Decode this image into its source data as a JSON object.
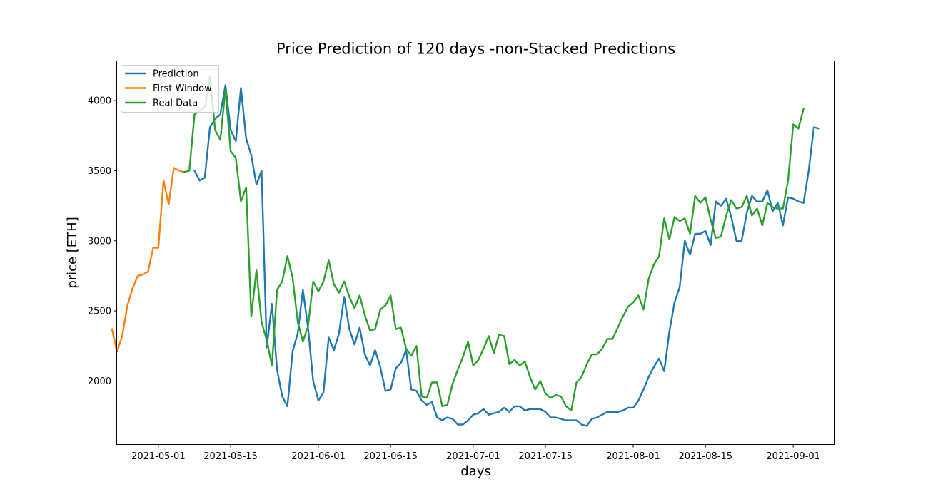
{
  "chart_data": {
    "type": "line",
    "title": "Price Prediction of 120 days -non-Stacked Predictions",
    "xlabel": "days",
    "ylabel": "price [ETH]",
    "xlim": [
      "2021-04-23",
      "2021-09-09"
    ],
    "ylim": [
      1550,
      4280
    ],
    "x_ticks": [
      "2021-05-01",
      "2021-05-15",
      "2021-06-01",
      "2021-06-15",
      "2021-07-01",
      "2021-07-15",
      "2021-08-01",
      "2021-08-15",
      "2021-09-01"
    ],
    "y_ticks": [
      2000,
      2500,
      3000,
      3500,
      4000
    ],
    "grid": false,
    "legend_position": "top-left",
    "series": [
      {
        "name": "Prediction",
        "color": "#1f77b4",
        "points": [
          [
            "2021-05-08",
            3500
          ],
          [
            "2021-05-09",
            3430
          ],
          [
            "2021-05-10",
            3450
          ],
          [
            "2021-05-11",
            3810
          ],
          [
            "2021-05-12",
            3870
          ],
          [
            "2021-05-13",
            3900
          ],
          [
            "2021-05-14",
            4110
          ],
          [
            "2021-05-15",
            3790
          ],
          [
            "2021-05-16",
            3710
          ],
          [
            "2021-05-17",
            4090
          ],
          [
            "2021-05-18",
            3730
          ],
          [
            "2021-05-19",
            3610
          ],
          [
            "2021-05-20",
            3400
          ],
          [
            "2021-05-21",
            3500
          ],
          [
            "2021-05-22",
            2240
          ],
          [
            "2021-05-23",
            2550
          ],
          [
            "2021-05-24",
            2080
          ],
          [
            "2021-05-25",
            1890
          ],
          [
            "2021-05-26",
            1820
          ],
          [
            "2021-05-27",
            2210
          ],
          [
            "2021-05-28",
            2340
          ],
          [
            "2021-05-29",
            2650
          ],
          [
            "2021-05-30",
            2380
          ],
          [
            "2021-05-31",
            2000
          ],
          [
            "2021-06-01",
            1860
          ],
          [
            "2021-06-02",
            1920
          ],
          [
            "2021-06-03",
            2310
          ],
          [
            "2021-06-04",
            2220
          ],
          [
            "2021-06-05",
            2340
          ],
          [
            "2021-06-06",
            2600
          ],
          [
            "2021-06-07",
            2370
          ],
          [
            "2021-06-08",
            2260
          ],
          [
            "2021-06-09",
            2380
          ],
          [
            "2021-06-10",
            2190
          ],
          [
            "2021-06-11",
            2110
          ],
          [
            "2021-06-12",
            2220
          ],
          [
            "2021-06-13",
            2100
          ],
          [
            "2021-06-14",
            1930
          ],
          [
            "2021-06-15",
            1940
          ],
          [
            "2021-06-16",
            2090
          ],
          [
            "2021-06-17",
            2130
          ],
          [
            "2021-06-18",
            2220
          ],
          [
            "2021-06-19",
            1940
          ],
          [
            "2021-06-20",
            1930
          ],
          [
            "2021-06-21",
            1860
          ],
          [
            "2021-06-22",
            1830
          ],
          [
            "2021-06-23",
            1850
          ],
          [
            "2021-06-24",
            1740
          ],
          [
            "2021-06-25",
            1720
          ],
          [
            "2021-06-26",
            1740
          ],
          [
            "2021-06-27",
            1730
          ],
          [
            "2021-06-28",
            1690
          ],
          [
            "2021-06-29",
            1690
          ],
          [
            "2021-06-30",
            1720
          ],
          [
            "2021-07-01",
            1760
          ],
          [
            "2021-07-02",
            1770
          ],
          [
            "2021-07-03",
            1800
          ],
          [
            "2021-07-04",
            1760
          ],
          [
            "2021-07-05",
            1770
          ],
          [
            "2021-07-06",
            1780
          ],
          [
            "2021-07-07",
            1810
          ],
          [
            "2021-07-08",
            1780
          ],
          [
            "2021-07-09",
            1820
          ],
          [
            "2021-07-10",
            1820
          ],
          [
            "2021-07-11",
            1790
          ],
          [
            "2021-07-12",
            1800
          ],
          [
            "2021-07-13",
            1800
          ],
          [
            "2021-07-14",
            1800
          ],
          [
            "2021-07-15",
            1780
          ],
          [
            "2021-07-16",
            1740
          ],
          [
            "2021-07-17",
            1740
          ],
          [
            "2021-07-18",
            1730
          ],
          [
            "2021-07-19",
            1720
          ],
          [
            "2021-07-20",
            1720
          ],
          [
            "2021-07-21",
            1720
          ],
          [
            "2021-07-22",
            1690
          ],
          [
            "2021-07-23",
            1680
          ],
          [
            "2021-07-24",
            1730
          ],
          [
            "2021-07-25",
            1740
          ],
          [
            "2021-07-26",
            1760
          ],
          [
            "2021-07-27",
            1780
          ],
          [
            "2021-07-28",
            1780
          ],
          [
            "2021-07-29",
            1780
          ],
          [
            "2021-07-30",
            1790
          ],
          [
            "2021-07-31",
            1810
          ],
          [
            "2021-08-01",
            1810
          ],
          [
            "2021-08-02",
            1860
          ],
          [
            "2021-08-03",
            1940
          ],
          [
            "2021-08-04",
            2030
          ],
          [
            "2021-08-05",
            2100
          ],
          [
            "2021-08-06",
            2160
          ],
          [
            "2021-08-07",
            2070
          ],
          [
            "2021-08-08",
            2350
          ],
          [
            "2021-08-09",
            2560
          ],
          [
            "2021-08-10",
            2670
          ],
          [
            "2021-08-11",
            3000
          ],
          [
            "2021-08-12",
            2900
          ],
          [
            "2021-08-13",
            3050
          ],
          [
            "2021-08-14",
            3050
          ],
          [
            "2021-08-15",
            3070
          ],
          [
            "2021-08-16",
            2970
          ],
          [
            "2021-08-17",
            3280
          ],
          [
            "2021-08-18",
            3250
          ],
          [
            "2021-08-19",
            3300
          ],
          [
            "2021-08-20",
            3170
          ],
          [
            "2021-08-21",
            3000
          ],
          [
            "2021-08-22",
            3000
          ],
          [
            "2021-08-23",
            3200
          ],
          [
            "2021-08-24",
            3320
          ],
          [
            "2021-08-25",
            3280
          ],
          [
            "2021-08-26",
            3280
          ],
          [
            "2021-08-27",
            3360
          ],
          [
            "2021-08-28",
            3210
          ],
          [
            "2021-08-29",
            3270
          ],
          [
            "2021-08-30",
            3110
          ],
          [
            "2021-08-31",
            3310
          ],
          [
            "2021-09-01",
            3300
          ],
          [
            "2021-09-02",
            3280
          ],
          [
            "2021-09-03",
            3270
          ],
          [
            "2021-09-04",
            3500
          ],
          [
            "2021-09-05",
            3810
          ],
          [
            "2021-09-06",
            3800
          ]
        ]
      },
      {
        "name": "First Window",
        "color": "#ff7f0e",
        "points": [
          [
            "2021-04-22",
            2370
          ],
          [
            "2021-04-23",
            2210
          ],
          [
            "2021-04-24",
            2320
          ],
          [
            "2021-04-25",
            2540
          ],
          [
            "2021-04-26",
            2660
          ],
          [
            "2021-04-27",
            2750
          ],
          [
            "2021-04-28",
            2760
          ],
          [
            "2021-04-29",
            2780
          ],
          [
            "2021-04-30",
            2950
          ],
          [
            "2021-05-01",
            2950
          ],
          [
            "2021-05-02",
            3430
          ],
          [
            "2021-05-03",
            3260
          ],
          [
            "2021-05-04",
            3520
          ],
          [
            "2021-05-05",
            3500
          ],
          [
            "2021-05-06",
            3490
          ]
        ]
      },
      {
        "name": "Real Data",
        "color": "#2ca02c",
        "points": [
          [
            "2021-05-06",
            3490
          ],
          [
            "2021-05-07",
            3500
          ],
          [
            "2021-05-08",
            3900
          ],
          [
            "2021-05-09",
            3930
          ],
          [
            "2021-05-10",
            3950
          ],
          [
            "2021-05-11",
            4170
          ],
          [
            "2021-05-12",
            3790
          ],
          [
            "2021-05-13",
            3720
          ],
          [
            "2021-05-14",
            4080
          ],
          [
            "2021-05-15",
            3640
          ],
          [
            "2021-05-16",
            3590
          ],
          [
            "2021-05-17",
            3280
          ],
          [
            "2021-05-18",
            3380
          ],
          [
            "2021-05-19",
            2460
          ],
          [
            "2021-05-20",
            2790
          ],
          [
            "2021-05-21",
            2420
          ],
          [
            "2021-05-22",
            2290
          ],
          [
            "2021-05-23",
            2110
          ],
          [
            "2021-05-24",
            2650
          ],
          [
            "2021-05-25",
            2710
          ],
          [
            "2021-05-26",
            2890
          ],
          [
            "2021-05-27",
            2740
          ],
          [
            "2021-05-28",
            2420
          ],
          [
            "2021-05-29",
            2280
          ],
          [
            "2021-05-30",
            2390
          ],
          [
            "2021-05-31",
            2710
          ],
          [
            "2021-06-01",
            2640
          ],
          [
            "2021-06-02",
            2710
          ],
          [
            "2021-06-03",
            2860
          ],
          [
            "2021-06-04",
            2690
          ],
          [
            "2021-06-05",
            2630
          ],
          [
            "2021-06-06",
            2710
          ],
          [
            "2021-06-07",
            2600
          ],
          [
            "2021-06-08",
            2520
          ],
          [
            "2021-06-09",
            2610
          ],
          [
            "2021-06-10",
            2470
          ],
          [
            "2021-06-11",
            2360
          ],
          [
            "2021-06-12",
            2370
          ],
          [
            "2021-06-13",
            2510
          ],
          [
            "2021-06-14",
            2540
          ],
          [
            "2021-06-15",
            2610
          ],
          [
            "2021-06-16",
            2370
          ],
          [
            "2021-06-17",
            2380
          ],
          [
            "2021-06-18",
            2230
          ],
          [
            "2021-06-19",
            2180
          ],
          [
            "2021-06-20",
            2250
          ],
          [
            "2021-06-21",
            1890
          ],
          [
            "2021-06-22",
            1880
          ],
          [
            "2021-06-23",
            1990
          ],
          [
            "2021-06-24",
            1990
          ],
          [
            "2021-06-25",
            1820
          ],
          [
            "2021-06-26",
            1830
          ],
          [
            "2021-06-27",
            1980
          ],
          [
            "2021-06-28",
            2080
          ],
          [
            "2021-06-29",
            2170
          ],
          [
            "2021-06-30",
            2280
          ],
          [
            "2021-07-01",
            2110
          ],
          [
            "2021-07-02",
            2150
          ],
          [
            "2021-07-03",
            2230
          ],
          [
            "2021-07-04",
            2320
          ],
          [
            "2021-07-05",
            2200
          ],
          [
            "2021-07-06",
            2330
          ],
          [
            "2021-07-07",
            2320
          ],
          [
            "2021-07-08",
            2120
          ],
          [
            "2021-07-09",
            2150
          ],
          [
            "2021-07-10",
            2110
          ],
          [
            "2021-07-11",
            2140
          ],
          [
            "2021-07-12",
            2030
          ],
          [
            "2021-07-13",
            1940
          ],
          [
            "2021-07-14",
            2000
          ],
          [
            "2021-07-15",
            1910
          ],
          [
            "2021-07-16",
            1880
          ],
          [
            "2021-07-17",
            1900
          ],
          [
            "2021-07-18",
            1890
          ],
          [
            "2021-07-19",
            1820
          ],
          [
            "2021-07-20",
            1790
          ],
          [
            "2021-07-21",
            1990
          ],
          [
            "2021-07-22",
            2030
          ],
          [
            "2021-07-23",
            2120
          ],
          [
            "2021-07-24",
            2190
          ],
          [
            "2021-07-25",
            2190
          ],
          [
            "2021-07-26",
            2230
          ],
          [
            "2021-07-27",
            2300
          ],
          [
            "2021-07-28",
            2300
          ],
          [
            "2021-07-29",
            2380
          ],
          [
            "2021-07-30",
            2460
          ],
          [
            "2021-07-31",
            2530
          ],
          [
            "2021-08-01",
            2560
          ],
          [
            "2021-08-02",
            2610
          ],
          [
            "2021-08-03",
            2510
          ],
          [
            "2021-08-04",
            2730
          ],
          [
            "2021-08-05",
            2830
          ],
          [
            "2021-08-06",
            2890
          ],
          [
            "2021-08-07",
            3160
          ],
          [
            "2021-08-08",
            3010
          ],
          [
            "2021-08-09",
            3170
          ],
          [
            "2021-08-10",
            3140
          ],
          [
            "2021-08-11",
            3160
          ],
          [
            "2021-08-12",
            3050
          ],
          [
            "2021-08-13",
            3320
          ],
          [
            "2021-08-14",
            3270
          ],
          [
            "2021-08-15",
            3310
          ],
          [
            "2021-08-16",
            3150
          ],
          [
            "2021-08-17",
            3020
          ],
          [
            "2021-08-18",
            3030
          ],
          [
            "2021-08-19",
            3180
          ],
          [
            "2021-08-20",
            3290
          ],
          [
            "2021-08-21",
            3230
          ],
          [
            "2021-08-22",
            3240
          ],
          [
            "2021-08-23",
            3320
          ],
          [
            "2021-08-24",
            3180
          ],
          [
            "2021-08-25",
            3230
          ],
          [
            "2021-08-26",
            3110
          ],
          [
            "2021-08-27",
            3270
          ],
          [
            "2021-08-28",
            3240
          ],
          [
            "2021-08-29",
            3230
          ],
          [
            "2021-08-30",
            3230
          ],
          [
            "2021-08-31",
            3430
          ],
          [
            "2021-09-01",
            3830
          ],
          [
            "2021-09-02",
            3800
          ],
          [
            "2021-09-03",
            3940
          ]
        ]
      }
    ]
  }
}
